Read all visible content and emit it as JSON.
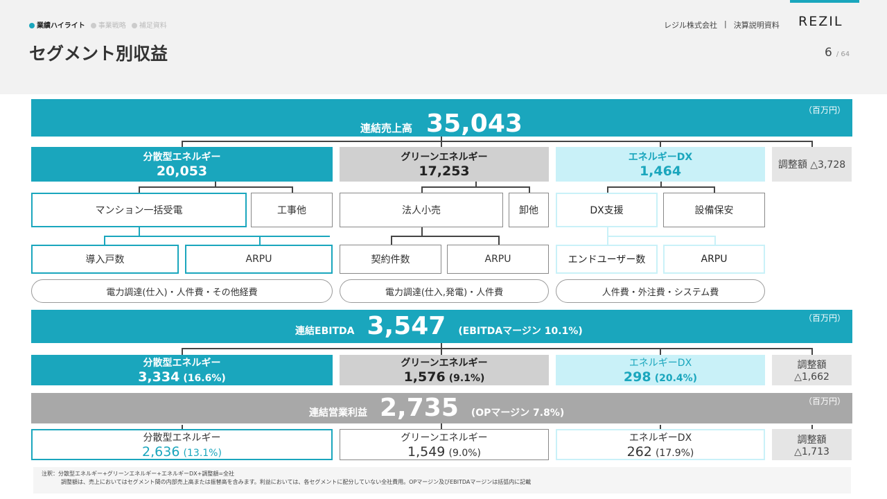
{
  "header": {
    "nav": [
      "業績ハイライト",
      "事業戦略",
      "補足資料"
    ],
    "title": "セグメント別収益",
    "company": "レジル株式会社",
    "separator": "|",
    "doc": "決算説明資料",
    "logo": "REZIL",
    "page": "6",
    "page_sep": "/",
    "total_pages": "64"
  },
  "revenue": {
    "unit": "（百万円）",
    "label": "連結売上高",
    "value": "35,043",
    "segments": [
      {
        "name": "分散型エネルギー",
        "value": "20,053"
      },
      {
        "name": "グリーンエネルギー",
        "value": "17,253"
      },
      {
        "name": "エネルギーDX",
        "value": "1,464"
      }
    ],
    "adjust": "調整額 △3,728",
    "sub": {
      "dist_main": "マンション一括受電",
      "dist_other": "工事他",
      "green_main": "法人小売",
      "green_other": "卸他",
      "dx_main": "DX支援",
      "dx_other": "設備保安"
    },
    "kpi": {
      "dist_1": "導入戸数",
      "dist_2": "ARPU",
      "green_1": "契約件数",
      "green_2": "ARPU",
      "dx_1": "エンドユーザー数",
      "dx_2": "ARPU"
    },
    "costs": {
      "dist": "電力調達(仕入)・人件費・その他経費",
      "green": "電力調達(仕入,発電)・人件費",
      "dx": "人件費・外注費・システム費"
    }
  },
  "ebitda": {
    "unit": "（百万円）",
    "label": "連結EBITDA",
    "value": "3,547",
    "margin": "(EBITDAマージン 10.1%)",
    "segments": [
      {
        "name": "分散型エネルギー",
        "value": "3,334",
        "pct": "(16.6%)"
      },
      {
        "name": "グリーンエネルギー",
        "value": "1,576",
        "pct": "(9.1%)"
      },
      {
        "name": "エネルギーDX",
        "value": "298",
        "pct": "(20.4%)"
      }
    ],
    "adjust_label": "調整額",
    "adjust_value": "△1,662"
  },
  "op": {
    "unit": "（百万円）",
    "label": "連結営業利益",
    "value": "2,735",
    "margin": "(OPマージン 7.8%)",
    "segments": [
      {
        "name": "分散型エネルギー",
        "value": "2,636",
        "pct": "(13.1%)"
      },
      {
        "name": "グリーンエネルギー",
        "value": "1,549",
        "pct": "(9.0%)"
      },
      {
        "name": "エネルギーDX",
        "value": "262",
        "pct": "(17.9%)"
      }
    ],
    "adjust_label": "調整額",
    "adjust_value": "△1,713"
  },
  "note": {
    "line1": "注釈：分散型エネルギー+グリーンエネルギー+エネルギーDX+調整額=全社",
    "line2": "調整額は、売上においてはセグメント間の内部売上高または振替高を含みます。利益においては、各セグメントに配分していない全社費用。OPマージン及びEBITDAマージンは括弧内に記載"
  },
  "colors": {
    "teal": "#1aa6bd",
    "light_cyan": "#c9f1f8",
    "gray": "#d0d0d0"
  }
}
